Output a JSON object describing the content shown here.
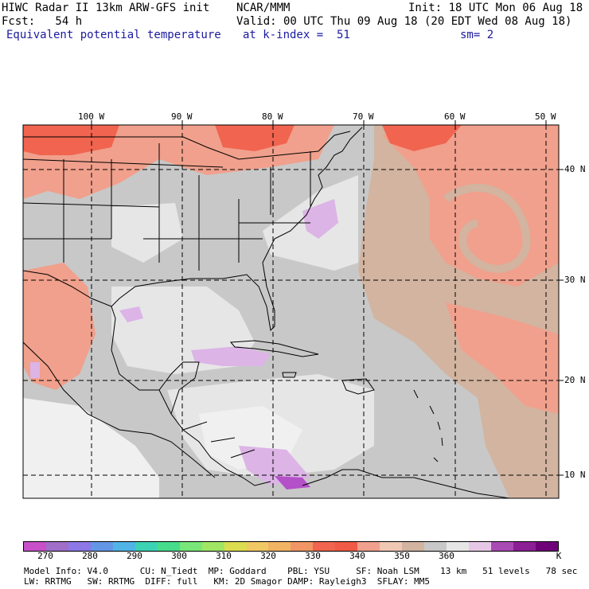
{
  "header": {
    "line1_left": "HIWC Radar II 13km ARW-GFS init",
    "line1_center": "NCAR/MMM",
    "line1_right": "Init: 18 UTC Mon 06 Aug 18",
    "line2_left": "Fcst:   54 h",
    "line2_right": "Valid: 00 UTC Thu 09 Aug 18 (20 EDT Wed 08 Aug 18)",
    "line3_field": "Equivalent potential temperature",
    "line3_level": "at k-index =  51",
    "line3_smooth": "sm= 2"
  },
  "map": {
    "lon_labels": [
      "100 W",
      "90 W",
      "80 W",
      "70 W",
      "60 W",
      "50 W"
    ],
    "lat_labels": [
      "40 N",
      "30 N",
      "20 N",
      "10 N"
    ],
    "colors": {
      "ocean_gray": "#c8c8c8",
      "dark_gray": "#b4b4b4",
      "light_gray": "#e6e6e6",
      "white_gray": "#f0f0f0",
      "tan": "#d2b4a0",
      "salmon": "#f0a08c",
      "red_orange": "#f06450",
      "light_purple": "#dcb4e6",
      "purple": "#b450c8",
      "coast": "#000000"
    }
  },
  "colorbar": {
    "colors": [
      "#c850c8",
      "#a06ec8",
      "#8c78e6",
      "#6496e6",
      "#50b4e6",
      "#3cd2b4",
      "#46dc8c",
      "#78e678",
      "#a0e664",
      "#dcdc50",
      "#f0c864",
      "#f0b464",
      "#f09664",
      "#f06450",
      "#f05a46",
      "#f0a08c",
      "#f0c8b4",
      "#d2b4a0",
      "#c8c8c8",
      "#e6e6e6",
      "#e6c8e6",
      "#aa4ab4",
      "#8c1e96",
      "#6e0078"
    ],
    "tick_labels": [
      "270",
      "280",
      "290",
      "300",
      "310",
      "320",
      "330",
      "340",
      "350",
      "360"
    ],
    "unit": "K"
  },
  "footer": {
    "line1": "Model Info: V4.0      CU: N_Tiedt  MP: Goddard    PBL: YSU     SF: Noah LSM    13 km   51 levels   78 sec",
    "line2": "LW: RRTMG   SW: RRTMG  DIFF: full   KM: 2D Smagor DAMP: Rayleigh3  SFLAY: MM5"
  }
}
